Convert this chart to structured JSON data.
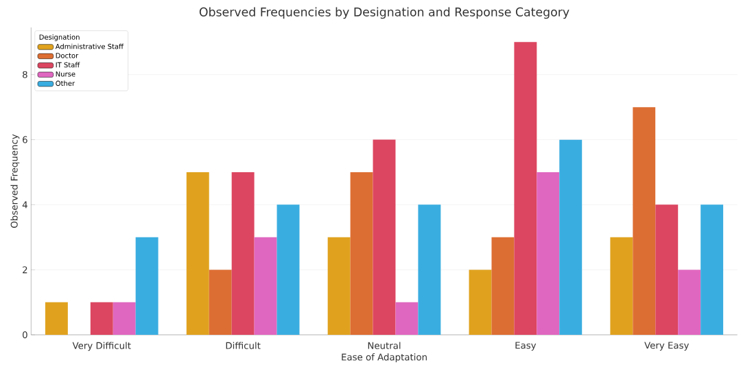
{
  "chart_data": {
    "type": "bar",
    "title": "Observed Frequencies by Designation and Response Category",
    "xlabel": "Ease of Adaptation",
    "ylabel": "Observed Frequency",
    "legend_title": "Designation",
    "categories": [
      "Very Difficult",
      "Difficult",
      "Neutral",
      "Easy",
      "Very Easy"
    ],
    "series": [
      {
        "name": "Administrative Staff",
        "color": "#e0a21e",
        "values": [
          1,
          5,
          3,
          2,
          3
        ]
      },
      {
        "name": "Doctor",
        "color": "#dd6e33",
        "values": [
          0,
          2,
          5,
          3,
          7
        ]
      },
      {
        "name": "IT Staff",
        "color": "#dc4660",
        "values": [
          1,
          5,
          6,
          9,
          4
        ]
      },
      {
        "name": "Nurse",
        "color": "#e067c0",
        "values": [
          1,
          3,
          1,
          5,
          2
        ]
      },
      {
        "name": "Other",
        "color": "#3aade0",
        "values": [
          3,
          4,
          4,
          6,
          4
        ]
      }
    ],
    "ylim": [
      0,
      9.45
    ],
    "yticks": [
      0,
      2,
      4,
      6,
      8
    ],
    "grid": "y",
    "legend": "top left"
  }
}
